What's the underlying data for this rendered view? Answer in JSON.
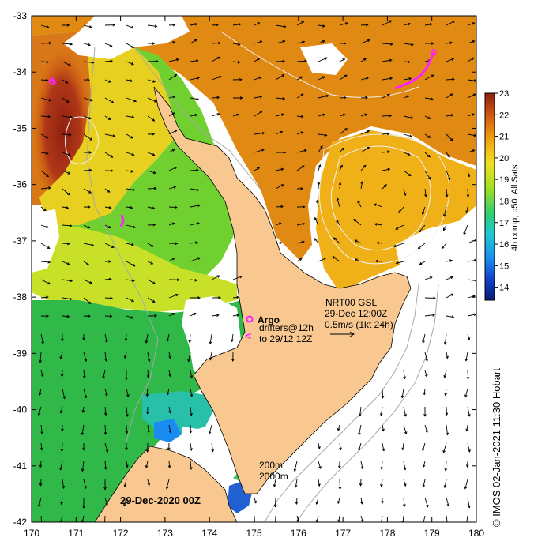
{
  "map": {
    "lon_ticks": [
      "170",
      "171",
      "172",
      "173",
      "174",
      "175",
      "176",
      "177",
      "178",
      "179",
      "180"
    ],
    "lat_ticks": [
      "-33",
      "-34",
      "-35",
      "-36",
      "-37",
      "-38",
      "-39",
      "-40",
      "-41",
      "-42"
    ],
    "lon_range": [
      170,
      180
    ],
    "lat_range": [
      -33,
      -42
    ]
  },
  "legend": {
    "argo_label": "Argo",
    "drifters_line1": "drifters@12h",
    "drifters_line2": "to 29/12 12Z",
    "drifter_marker": "<",
    "nrt_line1": "NRT00 GSL",
    "nrt_line2": "29-Dec 12:00Z",
    "nrt_line3": "0.5m/s (1kt 24h)",
    "depth_1": "200m",
    "depth_2": "2000m"
  },
  "date_label": "29-Dec-2020 00Z",
  "credit": "© IMOS 02-Jan-2021 11:30 Hobart",
  "colorbar": {
    "title": "4h comp, p50, All Sats",
    "ticks": [
      "14",
      "15",
      "16",
      "17",
      "18",
      "19",
      "20",
      "21",
      "22",
      "23"
    ],
    "range": [
      13.4,
      23
    ],
    "colors": [
      "#0a1a78",
      "#1040c8",
      "#1a8cf0",
      "#20c8d0",
      "#30d070",
      "#a8e020",
      "#f0e020",
      "#f0a010",
      "#d86010",
      "#902010"
    ]
  },
  "colors": {
    "land": "#f8c890",
    "ocean_no_data": "#ffffff",
    "argo": "#ff20ff",
    "arrow": "#000000",
    "contour": "#a8a8a8"
  }
}
